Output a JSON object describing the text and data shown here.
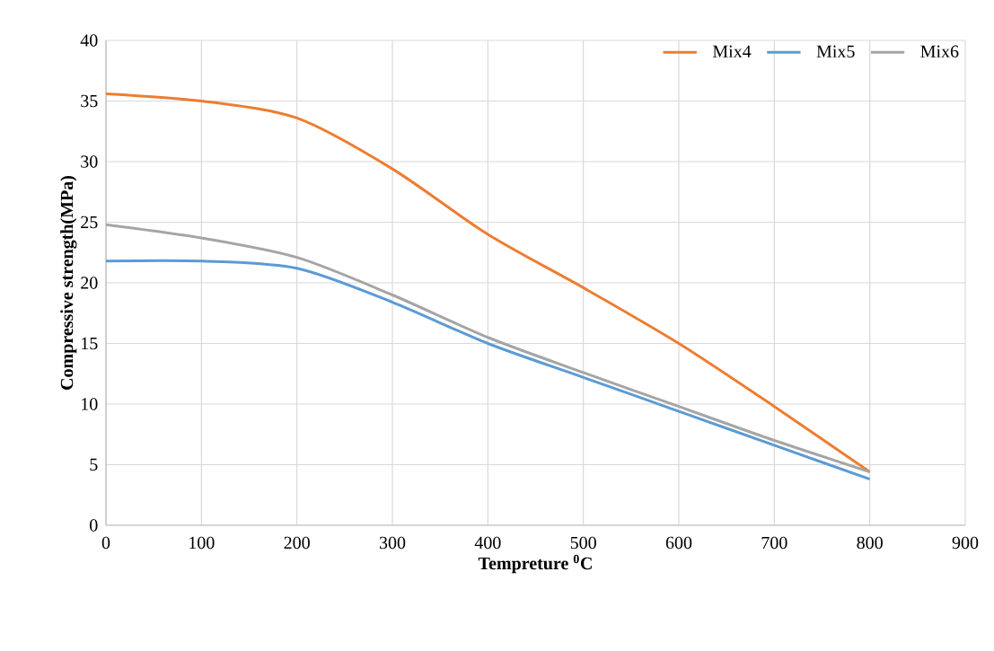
{
  "chart_data": {
    "type": "line",
    "xlabel": "Tempreture $^{0}$C",
    "ylabel": "Compressive strength(MPa)",
    "x": [
      0,
      100,
      200,
      300,
      400,
      500,
      600,
      700,
      800
    ],
    "series": [
      {
        "name": "Mix4",
        "color": "#ed7d31",
        "values": [
          35.6,
          35.0,
          33.6,
          29.4,
          24.0,
          19.6,
          15.0,
          9.8,
          4.4
        ]
      },
      {
        "name": "Mix5",
        "color": "#5b9bd5",
        "values": [
          21.8,
          21.8,
          21.2,
          18.4,
          15.0,
          12.2,
          9.4,
          6.6,
          3.8
        ]
      },
      {
        "name": "Mix6",
        "color": "#a5a5a5",
        "values": [
          24.8,
          23.7,
          22.1,
          19.0,
          15.5,
          12.6,
          9.8,
          7.0,
          4.4
        ]
      }
    ],
    "xlim": [
      0,
      900
    ],
    "xticks": [
      0,
      100,
      200,
      300,
      400,
      500,
      600,
      700,
      800,
      900
    ],
    "ylim": [
      0,
      40
    ],
    "yticks": [
      0,
      5,
      10,
      15,
      20,
      25,
      30,
      35,
      40
    ],
    "grid": true,
    "legend": "top right",
    "marker": "none",
    "line_style": "solid"
  }
}
